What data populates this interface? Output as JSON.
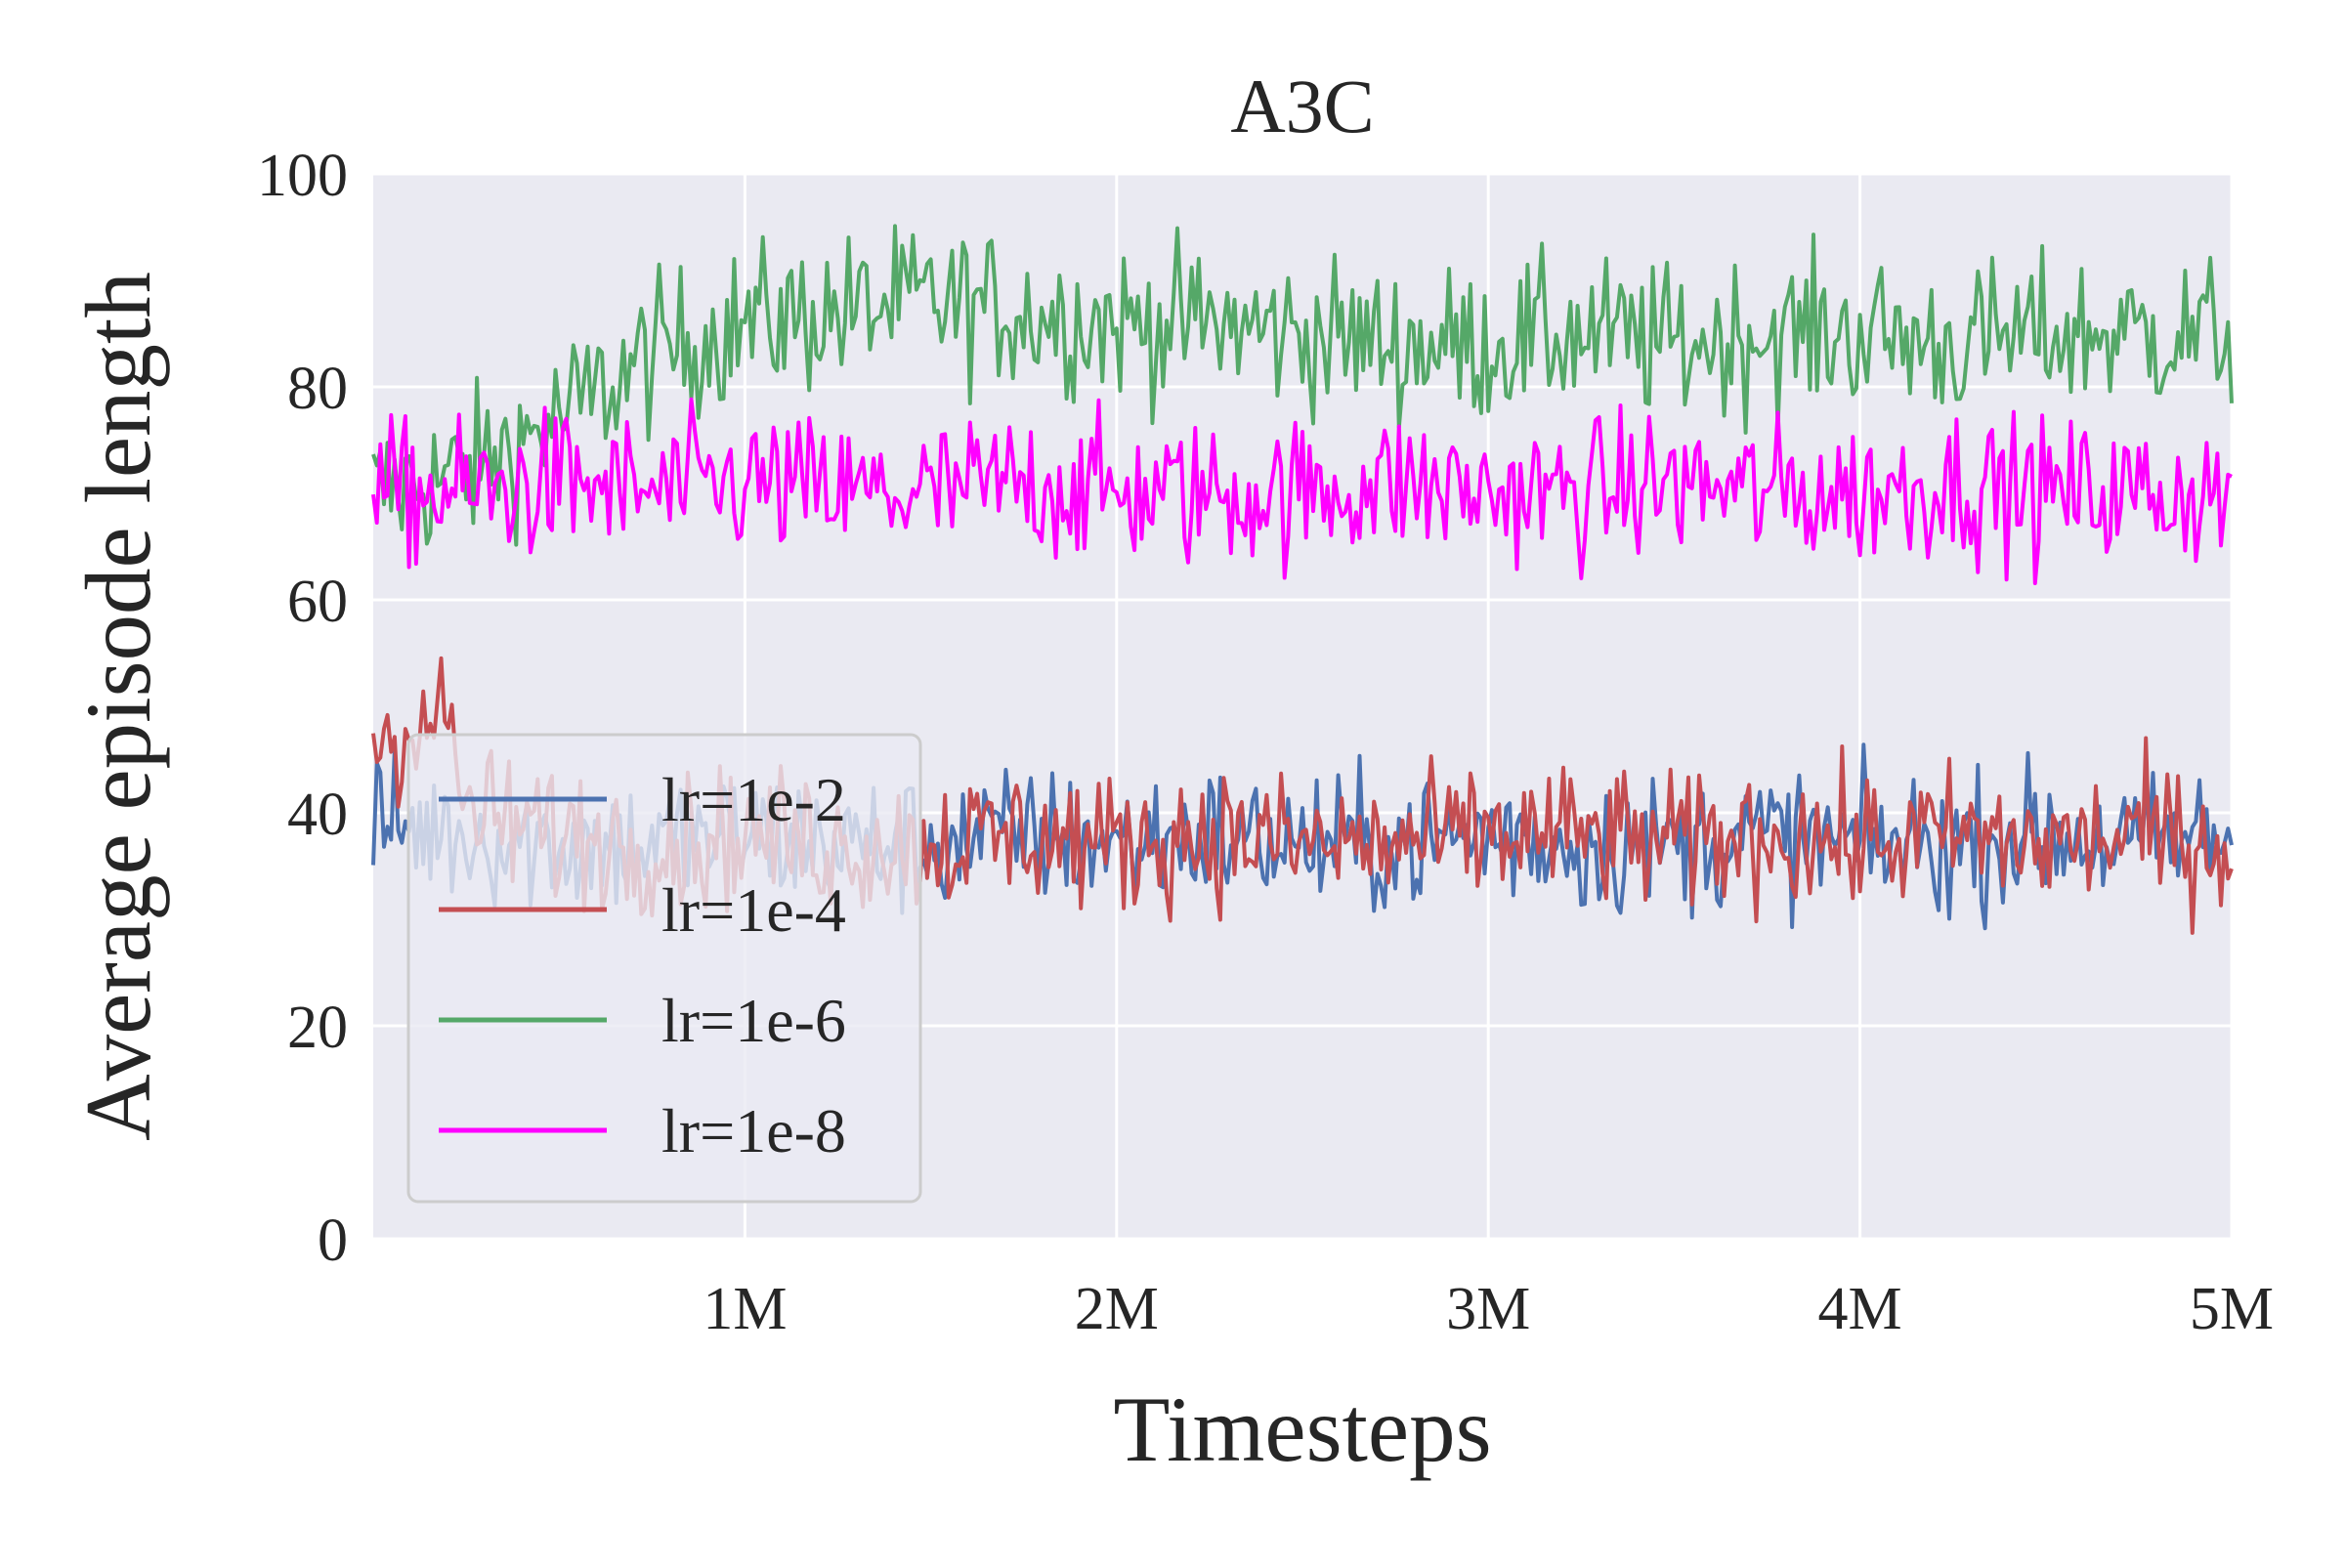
{
  "chart_data": {
    "type": "line",
    "title": "A3C",
    "xlabel": "Timesteps",
    "ylabel": "Average episode length",
    "xlim": [
      0,
      5000000
    ],
    "ylim": [
      0,
      100
    ],
    "x_ticks": [
      {
        "value": 1000000,
        "label": "1M"
      },
      {
        "value": 2000000,
        "label": "2M"
      },
      {
        "value": 3000000,
        "label": "3M"
      },
      {
        "value": 4000000,
        "label": "4M"
      },
      {
        "value": 5000000,
        "label": "5M"
      }
    ],
    "y_ticks": [
      {
        "value": 0,
        "label": "0"
      },
      {
        "value": 20,
        "label": "20"
      },
      {
        "value": 40,
        "label": "40"
      },
      {
        "value": 60,
        "label": "60"
      },
      {
        "value": 80,
        "label": "80"
      },
      {
        "value": 100,
        "label": "100"
      }
    ],
    "grid": true,
    "legend_position": "lower-left",
    "background": "#eaeaf2",
    "series": [
      {
        "name": "lr=1e-2",
        "color": "#4c72b0",
        "x": [
          0,
          250000,
          500000,
          750000,
          1000000,
          1250000,
          1500000,
          1750000,
          2000000,
          2250000,
          2500000,
          2750000,
          3000000,
          3250000,
          3500000,
          3750000,
          4000000,
          4250000,
          4500000,
          4750000,
          5000000
        ],
        "values": [
          39,
          38,
          37,
          37,
          38,
          37,
          37,
          38,
          37,
          38,
          37,
          37,
          38,
          37,
          37,
          38,
          37,
          37,
          38,
          37,
          38
        ]
      },
      {
        "name": "lr=1e-4",
        "color": "#c44e52",
        "x": [
          0,
          100000,
          200000,
          250000,
          500000,
          750000,
          1000000,
          1250000,
          1500000,
          1750000,
          2000000,
          2250000,
          2500000,
          2750000,
          3000000,
          3250000,
          3500000,
          3750000,
          4000000,
          4250000,
          4500000,
          4750000,
          5000000
        ],
        "values": [
          47,
          48,
          49,
          40,
          38,
          37,
          38,
          37,
          37,
          38,
          37,
          38,
          37,
          37,
          38,
          38,
          37,
          38,
          37,
          38,
          37,
          38,
          37
        ]
      },
      {
        "name": "lr=1e-6",
        "color": "#55a868",
        "x": [
          0,
          250000,
          500000,
          750000,
          1000000,
          1250000,
          1500000,
          1750000,
          2000000,
          2250000,
          2500000,
          2750000,
          3000000,
          3250000,
          3500000,
          3750000,
          4000000,
          4250000,
          4500000,
          4750000,
          5000000
        ],
        "values": [
          70,
          72,
          77,
          83,
          86,
          87,
          88,
          87,
          86,
          86,
          85,
          84,
          84,
          85,
          84,
          85,
          85,
          84,
          85,
          85,
          85
        ]
      },
      {
        "name": "lr=1e-8",
        "color": "#ff00ff",
        "x": [
          0,
          250000,
          500000,
          750000,
          1000000,
          1250000,
          1500000,
          1750000,
          2000000,
          2250000,
          2500000,
          2750000,
          3000000,
          3250000,
          3500000,
          3750000,
          4000000,
          4250000,
          4500000,
          4750000,
          5000000
        ],
        "values": [
          70,
          70,
          71,
          70,
          71,
          70,
          70,
          71,
          70,
          70,
          70,
          71,
          70,
          70,
          71,
          70,
          70,
          71,
          70,
          70,
          70
        ]
      }
    ]
  }
}
